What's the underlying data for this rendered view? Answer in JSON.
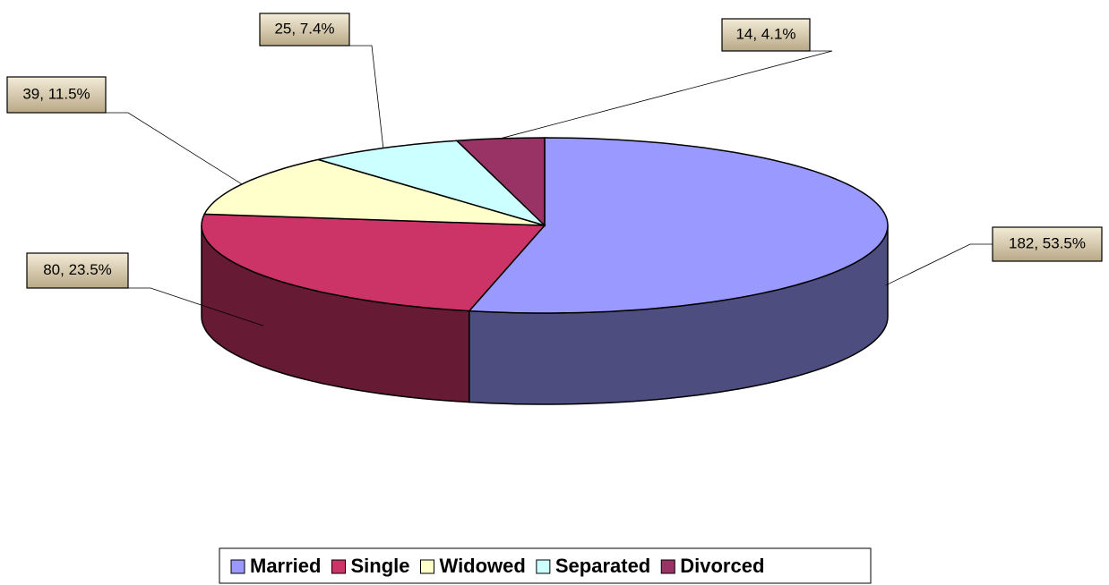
{
  "chart_data": {
    "type": "pie",
    "categories": [
      "Married",
      "Single",
      "Widowed",
      "Separated",
      "Divorced"
    ],
    "values": [
      182,
      80,
      39,
      25,
      14
    ],
    "value_labels": [
      "182, 53.5%",
      "80, 23.5%",
      "39, 11.5%",
      "25, 7.4%",
      "14, 4.1%"
    ],
    "colors": [
      "#9999ff",
      "#cc3366",
      "#ffffcc",
      "#ccffff",
      "#993366"
    ],
    "legend": "bottom"
  }
}
